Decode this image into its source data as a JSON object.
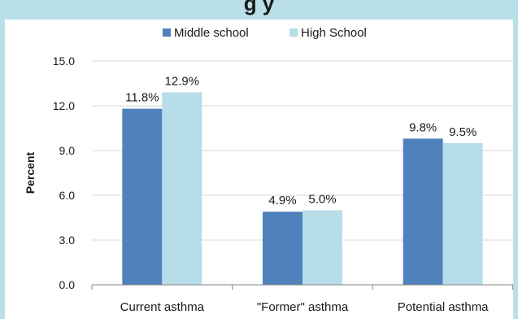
{
  "page_title_fragment": "g                         y",
  "chart_data": {
    "type": "bar",
    "title": "",
    "xlabel": "",
    "ylabel": "Percent",
    "ylim": [
      0,
      15
    ],
    "yticks": [
      "15.0",
      "12.0",
      "9.0",
      "6.0",
      "3.0",
      "0.0"
    ],
    "ytick_values": [
      15,
      12,
      9,
      6,
      3,
      0
    ],
    "categories": [
      "Current asthma",
      "\"Former\" asthma",
      "Potential asthma"
    ],
    "series": [
      {
        "name": "Middle school",
        "color": "#4f81bd",
        "values": [
          11.8,
          4.9,
          9.8
        ],
        "labels": [
          "11.8%",
          "4.9%",
          "9.8%"
        ]
      },
      {
        "name": "High School",
        "color": "#b7dde8",
        "values": [
          12.9,
          5.0,
          9.5
        ],
        "labels": [
          "12.9%",
          "5.0%",
          "9.5%"
        ]
      }
    ],
    "legend_position": "top-center",
    "grid": true
  }
}
